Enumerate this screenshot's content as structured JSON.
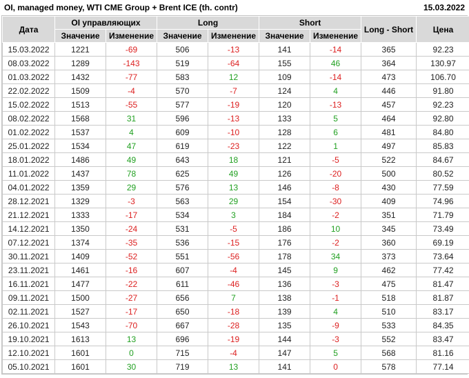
{
  "page": {
    "title": "OI, managed money, WTI CME Group + Brent ICE (th. contr)",
    "report_date": "15.03.2022"
  },
  "table": {
    "headers": {
      "date": "Дата",
      "oi_group": "OI управляющих",
      "long_group": "Long",
      "short_group": "Short",
      "value": "Значение",
      "change": "Изменение",
      "long_short": "Long - Short",
      "price": "Цена"
    },
    "colors": {
      "positive": "#21a021",
      "negative": "#dc2020",
      "header_bg": "#d9d9d9",
      "grid": "#c9c9c9"
    },
    "rows": [
      {
        "date": "15.03.2022",
        "oi": "1221",
        "oi_chg": "-69",
        "oi_chg_c": "neg",
        "long": "506",
        "long_chg": "-13",
        "long_chg_c": "neg",
        "short": "141",
        "short_chg": "-14",
        "short_chg_c": "neg",
        "ls": "365",
        "price": "92.23"
      },
      {
        "date": "08.03.2022",
        "oi": "1289",
        "oi_chg": "-143",
        "oi_chg_c": "neg",
        "long": "519",
        "long_chg": "-64",
        "long_chg_c": "neg",
        "short": "155",
        "short_chg": "46",
        "short_chg_c": "pos",
        "ls": "364",
        "price": "130.97"
      },
      {
        "date": "01.03.2022",
        "oi": "1432",
        "oi_chg": "-77",
        "oi_chg_c": "neg",
        "long": "583",
        "long_chg": "12",
        "long_chg_c": "pos",
        "short": "109",
        "short_chg": "-14",
        "short_chg_c": "neg",
        "ls": "473",
        "price": "106.70"
      },
      {
        "date": "22.02.2022",
        "oi": "1509",
        "oi_chg": "-4",
        "oi_chg_c": "neg",
        "long": "570",
        "long_chg": "-7",
        "long_chg_c": "neg",
        "short": "124",
        "short_chg": "4",
        "short_chg_c": "pos",
        "ls": "446",
        "price": "91.80"
      },
      {
        "date": "15.02.2022",
        "oi": "1513",
        "oi_chg": "-55",
        "oi_chg_c": "neg",
        "long": "577",
        "long_chg": "-19",
        "long_chg_c": "neg",
        "short": "120",
        "short_chg": "-13",
        "short_chg_c": "neg",
        "ls": "457",
        "price": "92.23"
      },
      {
        "date": "08.02.2022",
        "oi": "1568",
        "oi_chg": "31",
        "oi_chg_c": "pos",
        "long": "596",
        "long_chg": "-13",
        "long_chg_c": "neg",
        "short": "133",
        "short_chg": "5",
        "short_chg_c": "pos",
        "ls": "464",
        "price": "92.80"
      },
      {
        "date": "01.02.2022",
        "oi": "1537",
        "oi_chg": "4",
        "oi_chg_c": "pos",
        "long": "609",
        "long_chg": "-10",
        "long_chg_c": "neg",
        "short": "128",
        "short_chg": "6",
        "short_chg_c": "pos",
        "ls": "481",
        "price": "84.80"
      },
      {
        "date": "25.01.2022",
        "oi": "1534",
        "oi_chg": "47",
        "oi_chg_c": "pos",
        "long": "619",
        "long_chg": "-23",
        "long_chg_c": "neg",
        "short": "122",
        "short_chg": "1",
        "short_chg_c": "pos",
        "ls": "497",
        "price": "85.83"
      },
      {
        "date": "18.01.2022",
        "oi": "1486",
        "oi_chg": "49",
        "oi_chg_c": "pos",
        "long": "643",
        "long_chg": "18",
        "long_chg_c": "pos",
        "short": "121",
        "short_chg": "-5",
        "short_chg_c": "neg",
        "ls": "522",
        "price": "84.67"
      },
      {
        "date": "11.01.2022",
        "oi": "1437",
        "oi_chg": "78",
        "oi_chg_c": "pos",
        "long": "625",
        "long_chg": "49",
        "long_chg_c": "pos",
        "short": "126",
        "short_chg": "-20",
        "short_chg_c": "neg",
        "ls": "500",
        "price": "80.52"
      },
      {
        "date": "04.01.2022",
        "oi": "1359",
        "oi_chg": "29",
        "oi_chg_c": "pos",
        "long": "576",
        "long_chg": "13",
        "long_chg_c": "pos",
        "short": "146",
        "short_chg": "-8",
        "short_chg_c": "neg",
        "ls": "430",
        "price": "77.59"
      },
      {
        "date": "28.12.2021",
        "oi": "1329",
        "oi_chg": "-3",
        "oi_chg_c": "neg",
        "long": "563",
        "long_chg": "29",
        "long_chg_c": "pos",
        "short": "154",
        "short_chg": "-30",
        "short_chg_c": "neg",
        "ls": "409",
        "price": "74.96"
      },
      {
        "date": "21.12.2021",
        "oi": "1333",
        "oi_chg": "-17",
        "oi_chg_c": "neg",
        "long": "534",
        "long_chg": "3",
        "long_chg_c": "pos",
        "short": "184",
        "short_chg": "-2",
        "short_chg_c": "neg",
        "ls": "351",
        "price": "71.79"
      },
      {
        "date": "14.12.2021",
        "oi": "1350",
        "oi_chg": "-24",
        "oi_chg_c": "neg",
        "long": "531",
        "long_chg": "-5",
        "long_chg_c": "neg",
        "short": "186",
        "short_chg": "10",
        "short_chg_c": "pos",
        "ls": "345",
        "price": "73.49"
      },
      {
        "date": "07.12.2021",
        "oi": "1374",
        "oi_chg": "-35",
        "oi_chg_c": "neg",
        "long": "536",
        "long_chg": "-15",
        "long_chg_c": "neg",
        "short": "176",
        "short_chg": "-2",
        "short_chg_c": "neg",
        "ls": "360",
        "price": "69.19"
      },
      {
        "date": "30.11.2021",
        "oi": "1409",
        "oi_chg": "-52",
        "oi_chg_c": "neg",
        "long": "551",
        "long_chg": "-56",
        "long_chg_c": "neg",
        "short": "178",
        "short_chg": "34",
        "short_chg_c": "pos",
        "ls": "373",
        "price": "73.64"
      },
      {
        "date": "23.11.2021",
        "oi": "1461",
        "oi_chg": "-16",
        "oi_chg_c": "neg",
        "long": "607",
        "long_chg": "-4",
        "long_chg_c": "neg",
        "short": "145",
        "short_chg": "9",
        "short_chg_c": "pos",
        "ls": "462",
        "price": "77.42"
      },
      {
        "date": "16.11.2021",
        "oi": "1477",
        "oi_chg": "-22",
        "oi_chg_c": "neg",
        "long": "611",
        "long_chg": "-46",
        "long_chg_c": "neg",
        "short": "136",
        "short_chg": "-3",
        "short_chg_c": "neg",
        "ls": "475",
        "price": "81.47"
      },
      {
        "date": "09.11.2021",
        "oi": "1500",
        "oi_chg": "-27",
        "oi_chg_c": "neg",
        "long": "656",
        "long_chg": "7",
        "long_chg_c": "pos",
        "short": "138",
        "short_chg": "-1",
        "short_chg_c": "neg",
        "ls": "518",
        "price": "81.87"
      },
      {
        "date": "02.11.2021",
        "oi": "1527",
        "oi_chg": "-17",
        "oi_chg_c": "neg",
        "long": "650",
        "long_chg": "-18",
        "long_chg_c": "neg",
        "short": "139",
        "short_chg": "4",
        "short_chg_c": "pos",
        "ls": "510",
        "price": "83.17"
      },
      {
        "date": "26.10.2021",
        "oi": "1543",
        "oi_chg": "-70",
        "oi_chg_c": "neg",
        "long": "667",
        "long_chg": "-28",
        "long_chg_c": "neg",
        "short": "135",
        "short_chg": "-9",
        "short_chg_c": "neg",
        "ls": "533",
        "price": "84.35"
      },
      {
        "date": "19.10.2021",
        "oi": "1613",
        "oi_chg": "13",
        "oi_chg_c": "pos",
        "long": "696",
        "long_chg": "-19",
        "long_chg_c": "neg",
        "short": "144",
        "short_chg": "-3",
        "short_chg_c": "neg",
        "ls": "552",
        "price": "83.47"
      },
      {
        "date": "12.10.2021",
        "oi": "1601",
        "oi_chg": "0",
        "oi_chg_c": "pos",
        "long": "715",
        "long_chg": "-4",
        "long_chg_c": "neg",
        "short": "147",
        "short_chg": "5",
        "short_chg_c": "pos",
        "ls": "568",
        "price": "81.16"
      },
      {
        "date": "05.10.2021",
        "oi": "1601",
        "oi_chg": "30",
        "oi_chg_c": "pos",
        "long": "719",
        "long_chg": "13",
        "long_chg_c": "pos",
        "short": "141",
        "short_chg": "0",
        "short_chg_c": "neg",
        "ls": "578",
        "price": "77.14"
      }
    ]
  }
}
